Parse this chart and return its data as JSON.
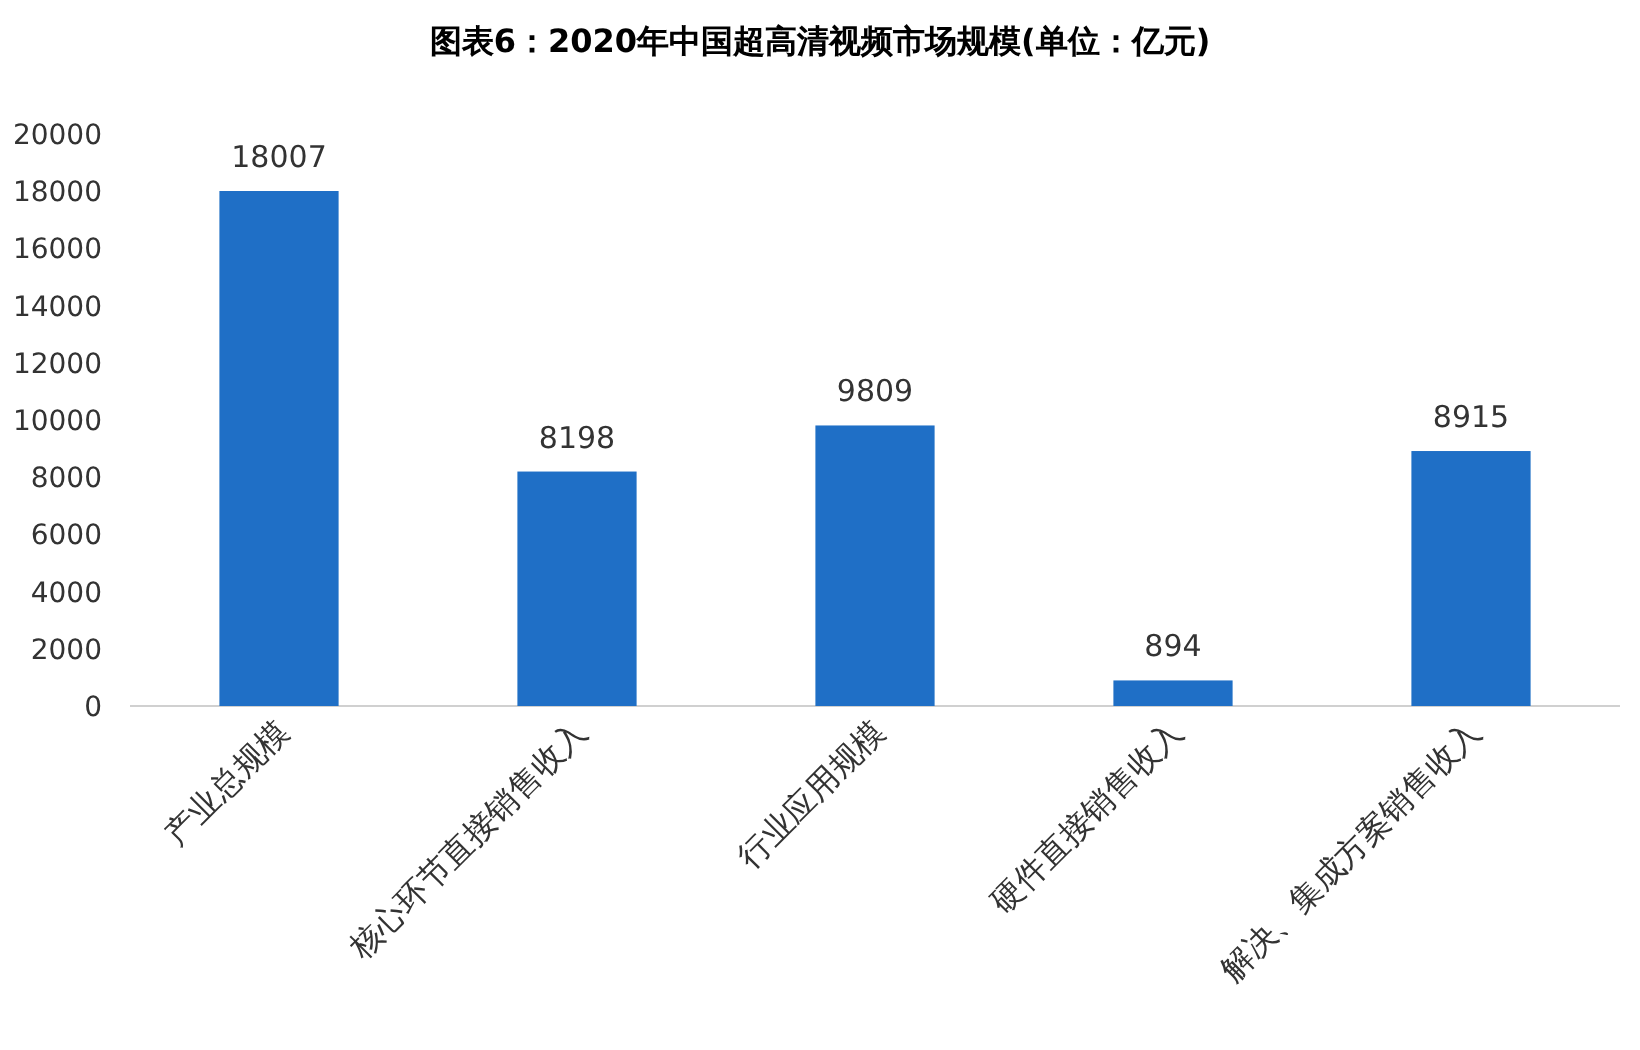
{
  "chart_data": {
    "type": "bar",
    "title": "图表6：2020年中国超高清视频市场规模(单位：亿元)",
    "categories": [
      "产业总规模",
      "核心环节直接销售收入",
      "行业应用规模",
      "硬件直接销售收入",
      "解决、集成方案销售收入"
    ],
    "values": [
      18007,
      8198,
      9809,
      894,
      8915
    ],
    "color": "#1f6fc6",
    "ylim": [
      0,
      20000
    ],
    "yticks": [
      0,
      2000,
      4000,
      6000,
      8000,
      10000,
      12000,
      14000,
      16000,
      18000,
      20000
    ],
    "grid": false,
    "data_labels": true
  }
}
